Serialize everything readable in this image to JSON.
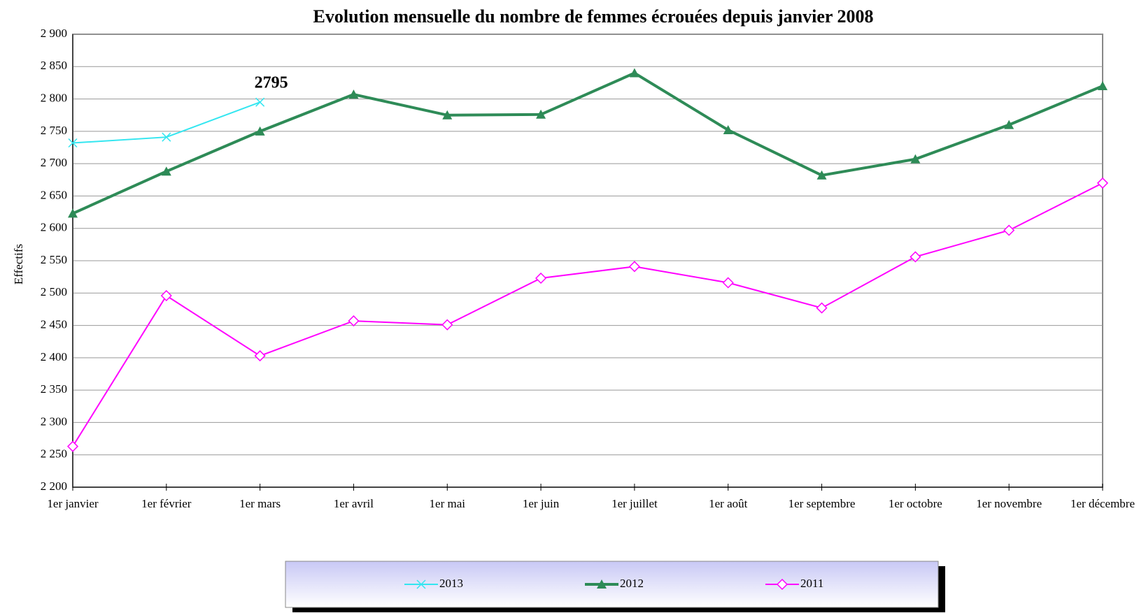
{
  "chart_data": {
    "type": "line",
    "title": "Evolution mensuelle du nombre de femmes écrouées depuis janvier 2008",
    "y_label": "Effectifs",
    "categories": [
      "1er janvier",
      "1er février",
      "1er mars",
      "1er avril",
      "1er mai",
      "1er juin",
      "1er juillet",
      "1er août",
      "1er septembre",
      "1er octobre",
      "1er novembre",
      "1er décembre"
    ],
    "series": [
      {
        "name": "2013",
        "color": "#33e6f0",
        "marker": "x",
        "values": [
          2732,
          2741,
          2795,
          null,
          null,
          null,
          null,
          null,
          null,
          null,
          null,
          null
        ]
      },
      {
        "name": "2012",
        "color": "#2e8b57",
        "marker": "triangle",
        "values": [
          2623,
          2688,
          2750,
          2807,
          2775,
          2776,
          2840,
          2752,
          2682,
          2707,
          2760,
          2820
        ]
      },
      {
        "name": "2011",
        "color": "#ff00ff",
        "marker": "diamond",
        "values": [
          2263,
          2496,
          2403,
          2457,
          2451,
          2523,
          2541,
          2516,
          2477,
          2556,
          2597,
          2670
        ]
      }
    ],
    "annotations": [
      {
        "series": 0,
        "index": 2
      }
    ],
    "ylim": [
      2200,
      2900
    ],
    "yticks": [
      {
        "value": 2200,
        "label": "2 200"
      },
      {
        "value": 2250,
        "label": "2 250"
      },
      {
        "value": 2300,
        "label": "2 300"
      },
      {
        "value": 2350,
        "label": "2 350"
      },
      {
        "value": 2400,
        "label": "2 400"
      },
      {
        "value": 2450,
        "label": "2 450"
      },
      {
        "value": 2500,
        "label": "2 500"
      },
      {
        "value": 2550,
        "label": "2 550"
      },
      {
        "value": 2600,
        "label": "2 600"
      },
      {
        "value": 2650,
        "label": "2 650"
      },
      {
        "value": 2700,
        "label": "2 700"
      },
      {
        "value": 2750,
        "label": "2 750"
      },
      {
        "value": 2800,
        "label": "2 800"
      },
      {
        "value": 2850,
        "label": "2 850"
      },
      {
        "value": 2900,
        "label": "2 900"
      }
    ],
    "grid": true,
    "legend": "bottom"
  }
}
